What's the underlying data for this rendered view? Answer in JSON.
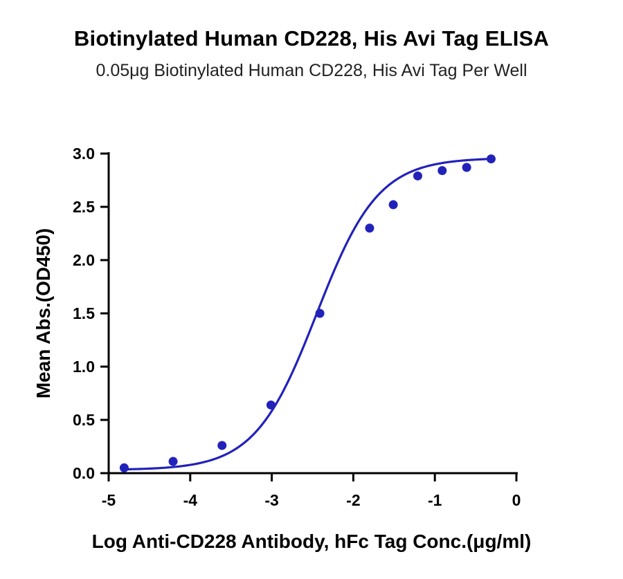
{
  "chart_data": {
    "type": "scatter",
    "title": "Biotinylated Human CD228, His Avi Tag ELISA",
    "subtitle": "0.05μg Biotinylated Human CD228, His Avi Tag Per Well",
    "xlabel": "Log Anti-CD228 Antibody, hFc Tag Conc.(μg/ml)",
    "ylabel": "Mean Abs.(OD450)",
    "xlim": [
      -5,
      0
    ],
    "ylim": [
      0,
      3.0
    ],
    "xticks": [
      -5,
      -4,
      -3,
      -2,
      -1,
      0
    ],
    "xtick_labels": [
      "-5",
      "-4",
      "-3",
      "-2",
      "-1",
      "0"
    ],
    "yticks": [
      0,
      0.5,
      1.0,
      1.5,
      2.0,
      2.5,
      3.0
    ],
    "ytick_labels": [
      "0.0",
      "0.5",
      "1.0",
      "1.5",
      "2.0",
      "2.5",
      "3.0"
    ],
    "grid": false,
    "legend": "none",
    "series": [
      {
        "color": "#2222bb",
        "x": [
          -4.81,
          -4.21,
          -3.61,
          -3.01,
          -2.41,
          -1.8,
          -1.51,
          -1.21,
          -0.91,
          -0.61,
          -0.31
        ],
        "y": [
          0.05,
          0.11,
          0.26,
          0.64,
          1.5,
          2.3,
          2.52,
          2.79,
          2.84,
          2.87,
          2.95
        ]
      }
    ],
    "fit_curve": {
      "model": "4PL",
      "color": "#2222bb",
      "bottom": 0.03,
      "top": 2.96,
      "logEC50": -2.45,
      "hill": 1.15
    }
  }
}
